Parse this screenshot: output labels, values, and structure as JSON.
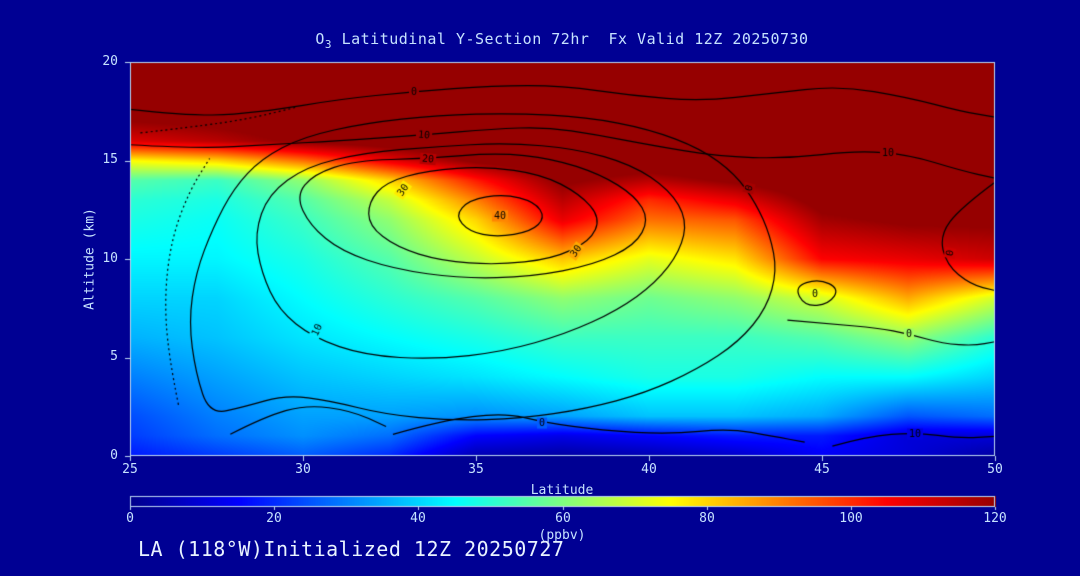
{
  "title": {
    "prefix": "O",
    "sub": "3",
    "rest": " Latitudinal Y-Section 72hr  Fx Valid 12Z 20250730"
  },
  "footer": "LA (118°W)Initialized 12Z 20250727",
  "axes": {
    "y": {
      "label": "Altitude (km)",
      "ticks": [
        "20",
        "15",
        "10",
        "5",
        "0"
      ]
    },
    "x": {
      "label": "Latitude",
      "ticks": [
        "25",
        "30",
        "35",
        "40",
        "45",
        "50"
      ]
    },
    "colorbar": {
      "label": "(ppbv)",
      "ticks": [
        "0",
        "20",
        "40",
        "60",
        "80",
        "100",
        "120"
      ]
    }
  },
  "colors": {
    "background": "#000093",
    "text": "#c6e2ff",
    "footer_text": "#e9f3ff",
    "contour": "#000000",
    "frame": "#bcd9f2",
    "colormap_low": "#00008c",
    "colormap_high": "#960000"
  },
  "chart_data": {
    "type": "heatmap",
    "title": "O3 Latitudinal Y-Section 72hr Fx Valid 12Z 20250730",
    "xlabel": "Latitude",
    "ylabel": "Altitude (km)",
    "units": "ppbv",
    "xlim": [
      25,
      50
    ],
    "ylim": [
      0,
      20
    ],
    "clim": [
      0,
      120
    ],
    "colormap": "jet",
    "grid": {
      "lats": [
        25,
        27.5,
        30,
        32.5,
        35,
        37.5,
        40,
        42.5,
        45,
        47.5,
        50
      ],
      "alts": [
        0,
        1,
        2,
        4,
        6,
        8,
        10,
        12,
        13,
        14,
        15,
        16,
        18,
        20
      ],
      "values": [
        [
          18,
          22,
          26,
          20,
          5,
          3,
          5,
          8,
          14,
          10,
          3
        ],
        [
          22,
          28,
          32,
          28,
          15,
          12,
          15,
          18,
          18,
          10,
          10
        ],
        [
          24,
          30,
          34,
          34,
          32,
          34,
          38,
          38,
          35,
          25,
          28
        ],
        [
          30,
          34,
          38,
          40,
          42,
          45,
          48,
          48,
          45,
          45,
          40
        ],
        [
          36,
          38,
          42,
          45,
          48,
          52,
          52,
          52,
          55,
          62,
          50
        ],
        [
          40,
          40,
          45,
          50,
          55,
          62,
          58,
          62,
          70,
          85,
          70
        ],
        [
          44,
          44,
          48,
          55,
          68,
          82,
          72,
          78,
          105,
          108,
          112
        ],
        [
          48,
          46,
          52,
          62,
          80,
          108,
          92,
          95,
          118,
          122,
          122
        ],
        [
          50,
          48,
          55,
          68,
          90,
          115,
          100,
          108,
          124,
          126,
          126
        ],
        [
          55,
          52,
          62,
          80,
          102,
          122,
          115,
          122,
          128,
          128,
          128
        ],
        [
          75,
          80,
          92,
          108,
          122,
          128,
          128,
          130,
          130,
          130,
          130
        ],
        [
          110,
          115,
          122,
          126,
          129,
          130,
          130,
          130,
          130,
          130,
          130
        ],
        [
          130,
          130,
          130,
          130,
          130,
          130,
          130,
          130,
          130,
          130,
          130
        ],
        [
          130,
          130,
          130,
          130,
          130,
          130,
          130,
          130,
          130,
          130,
          130
        ]
      ]
    },
    "overlay": {
      "paths": [
        {
          "name": "contour-0-top",
          "closed": false,
          "dotted": false,
          "pts": [
            [
              25,
              17.6
            ],
            [
              27,
              17.2
            ],
            [
              29,
              17.5
            ],
            [
              31,
              18.1
            ],
            [
              33.2,
              18.5
            ],
            [
              35.5,
              18.8
            ],
            [
              37.5,
              18.8
            ],
            [
              39.5,
              18.3
            ],
            [
              41.5,
              18.0
            ],
            [
              43.5,
              18.4
            ],
            [
              45.5,
              18.8
            ],
            [
              47.5,
              18.2
            ],
            [
              49,
              17.5
            ],
            [
              50,
              17.2
            ]
          ]
        },
        {
          "name": "contour-10-top",
          "closed": false,
          "dotted": false,
          "pts": [
            [
              25,
              15.8
            ],
            [
              27,
              15.6
            ],
            [
              29,
              15.8
            ],
            [
              31,
              16.0
            ],
            [
              33.5,
              16.3
            ],
            [
              35.5,
              16.6
            ],
            [
              37,
              16.7
            ],
            [
              38.5,
              16.3
            ],
            [
              40,
              15.8
            ],
            [
              42,
              15.2
            ],
            [
              44,
              15.1
            ],
            [
              46,
              15.5
            ],
            [
              47.5,
              15.3
            ],
            [
              49,
              14.5
            ],
            [
              50,
              14.1
            ]
          ]
        },
        {
          "name": "contour-20-ring",
          "closed": true,
          "dotted": false,
          "pts": [
            [
              29.8,
              13.2
            ],
            [
              30.3,
              14.3
            ],
            [
              31.5,
              15.0
            ],
            [
              33.6,
              15.1
            ],
            [
              35.6,
              15.4
            ],
            [
              37.2,
              15.1
            ],
            [
              38.6,
              14.3
            ],
            [
              39.6,
              13.2
            ],
            [
              40.0,
              12.0
            ],
            [
              39.6,
              10.7
            ],
            [
              38.4,
              9.7
            ],
            [
              36.6,
              9.1
            ],
            [
              34.6,
              9.0
            ],
            [
              32.6,
              9.5
            ],
            [
              31.1,
              10.4
            ],
            [
              30.2,
              11.7
            ]
          ]
        },
        {
          "name": "contour-30-ring",
          "closed": true,
          "dotted": false,
          "pts": [
            [
              31.9,
              12.9
            ],
            [
              32.4,
              13.9
            ],
            [
              33.6,
              14.5
            ],
            [
              35.3,
              14.7
            ],
            [
              36.9,
              14.3
            ],
            [
              38.0,
              13.3
            ],
            [
              38.6,
              12.1
            ],
            [
              38.3,
              10.9
            ],
            [
              37.2,
              10.0
            ],
            [
              35.6,
              9.7
            ],
            [
              34.0,
              9.9
            ],
            [
              32.7,
              10.6
            ],
            [
              31.9,
              11.7
            ]
          ]
        },
        {
          "name": "contour-40-ring",
          "closed": true,
          "dotted": false,
          "pts": [
            [
              34.4,
              12.2
            ],
            [
              34.8,
              13.0
            ],
            [
              35.8,
              13.3
            ],
            [
              36.7,
              12.9
            ],
            [
              37.0,
              12.1
            ],
            [
              36.6,
              11.4
            ],
            [
              35.6,
              11.1
            ],
            [
              34.8,
              11.4
            ]
          ]
        },
        {
          "name": "contour-10-ring",
          "closed": true,
          "dotted": false,
          "pts": [
            [
              28.6,
              11.3
            ],
            [
              29.0,
              13.3
            ],
            [
              30.1,
              14.7
            ],
            [
              31.8,
              15.4
            ],
            [
              33.8,
              15.7
            ],
            [
              35.9,
              15.9
            ],
            [
              37.9,
              15.6
            ],
            [
              39.5,
              14.8
            ],
            [
              40.6,
              13.5
            ],
            [
              41.1,
              12.0
            ],
            [
              40.9,
              10.4
            ],
            [
              40.2,
              8.8
            ],
            [
              39.1,
              7.4
            ],
            [
              37.6,
              6.2
            ],
            [
              35.8,
              5.3
            ],
            [
              33.8,
              4.9
            ],
            [
              31.8,
              5.1
            ],
            [
              30.3,
              6.0
            ],
            [
              29.3,
              7.4
            ],
            [
              28.8,
              9.3
            ]
          ]
        },
        {
          "name": "contour-0-ring",
          "closed": true,
          "dotted": false,
          "pts": [
            [
              27.3,
              2.1
            ],
            [
              26.9,
              4.2
            ],
            [
              26.7,
              6.8
            ],
            [
              26.9,
              9.3
            ],
            [
              27.4,
              11.6
            ],
            [
              28.0,
              13.6
            ],
            [
              28.8,
              15.1
            ],
            [
              30.0,
              16.2
            ],
            [
              31.8,
              16.9
            ],
            [
              33.9,
              17.3
            ],
            [
              36.1,
              17.4
            ],
            [
              38.2,
              17.2
            ],
            [
              40.0,
              16.6
            ],
            [
              41.5,
              15.6
            ],
            [
              42.5,
              14.3
            ],
            [
              43.1,
              12.8
            ],
            [
              43.5,
              11.2
            ],
            [
              43.7,
              9.4
            ],
            [
              43.4,
              7.5
            ],
            [
              42.6,
              5.8
            ],
            [
              41.4,
              4.4
            ],
            [
              39.9,
              3.2
            ],
            [
              38.2,
              2.4
            ],
            [
              36.3,
              1.9
            ],
            [
              34.3,
              1.8
            ],
            [
              32.4,
              2.1
            ],
            [
              30.8,
              2.8
            ],
            [
              29.5,
              3.1
            ],
            [
              28.3,
              2.5
            ]
          ]
        },
        {
          "name": "contour-0-right",
          "closed": false,
          "dotted": false,
          "pts": [
            [
              50,
              13.9
            ],
            [
              49.0,
              12.6
            ],
            [
              48.4,
              11.2
            ],
            [
              48.6,
              9.7
            ],
            [
              49.3,
              8.7
            ],
            [
              50,
              8.4
            ]
          ]
        },
        {
          "name": "contour-0-loop-right",
          "closed": true,
          "dotted": false,
          "pts": [
            [
              44.2,
              8.6
            ],
            [
              44.9,
              9.0
            ],
            [
              45.5,
              8.5
            ],
            [
              45.2,
              7.7
            ],
            [
              44.5,
              7.6
            ]
          ]
        },
        {
          "name": "contour-0-right-mid",
          "closed": false,
          "dotted": false,
          "pts": [
            [
              44.0,
              6.9
            ],
            [
              45.3,
              6.7
            ],
            [
              46.6,
              6.5
            ],
            [
              47.5,
              6.2
            ],
            [
              48.5,
              5.7
            ],
            [
              49.4,
              5.6
            ],
            [
              50,
              5.8
            ]
          ]
        },
        {
          "name": "contour-0-bottom",
          "closed": false,
          "dotted": false,
          "pts": [
            [
              32.6,
              1.1
            ],
            [
              34.0,
              1.8
            ],
            [
              35.8,
              2.2
            ],
            [
              37.0,
              1.7
            ],
            [
              38.6,
              1.3
            ],
            [
              40.6,
              1.1
            ],
            [
              42.3,
              1.4
            ],
            [
              43.6,
              1.0
            ],
            [
              44.5,
              0.7
            ]
          ]
        },
        {
          "name": "contour-10-bottom-right",
          "closed": false,
          "dotted": false,
          "pts": [
            [
              45.3,
              0.5
            ],
            [
              46.3,
              1.0
            ],
            [
              47.7,
              1.2
            ],
            [
              49.0,
              0.9
            ],
            [
              50,
              1.0
            ]
          ]
        },
        {
          "name": "contour-dotted-left",
          "closed": false,
          "dotted": true,
          "pts": [
            [
              26.4,
              2.6
            ],
            [
              26.1,
              5.2
            ],
            [
              26.0,
              8.2
            ],
            [
              26.2,
              11.0
            ],
            [
              26.7,
              13.4
            ],
            [
              27.3,
              15.1
            ]
          ]
        },
        {
          "name": "contour-dotted-topleft",
          "closed": false,
          "dotted": true,
          "pts": [
            [
              25.3,
              16.4
            ],
            [
              26.8,
              16.7
            ],
            [
              28.4,
              17.1
            ],
            [
              29.8,
              17.7
            ]
          ]
        },
        {
          "name": "contour-bottom-left",
          "closed": false,
          "dotted": false,
          "pts": [
            [
              27.9,
              1.1
            ],
            [
              28.9,
              2.0
            ],
            [
              30.1,
              2.6
            ],
            [
              31.4,
              2.3
            ],
            [
              32.4,
              1.5
            ]
          ]
        }
      ],
      "labels": [
        {
          "t": "0",
          "x": 33.2,
          "y": 18.5,
          "r": 0
        },
        {
          "t": "10",
          "x": 33.5,
          "y": 16.3,
          "r": 5
        },
        {
          "t": "20",
          "x": 33.6,
          "y": 15.1,
          "r": 5
        },
        {
          "t": "30",
          "x": 32.9,
          "y": 13.5,
          "r": -55
        },
        {
          "t": "40",
          "x": 35.7,
          "y": 12.2,
          "r": 0
        },
        {
          "t": "30",
          "x": 37.9,
          "y": 10.4,
          "r": -55
        },
        {
          "t": "10",
          "x": 30.4,
          "y": 6.4,
          "r": -65
        },
        {
          "t": "0",
          "x": 42.9,
          "y": 13.6,
          "r": -75
        },
        {
          "t": "10",
          "x": 46.9,
          "y": 15.4,
          "r": 0
        },
        {
          "t": "0",
          "x": 48.7,
          "y": 10.3,
          "r": -80
        },
        {
          "t": "0",
          "x": 44.8,
          "y": 8.2,
          "r": 0
        },
        {
          "t": "0",
          "x": 47.5,
          "y": 6.2,
          "r": 0
        },
        {
          "t": "0",
          "x": 36.9,
          "y": 1.7,
          "r": 0
        },
        {
          "t": "10",
          "x": 47.7,
          "y": 1.1,
          "r": 0
        }
      ]
    }
  }
}
